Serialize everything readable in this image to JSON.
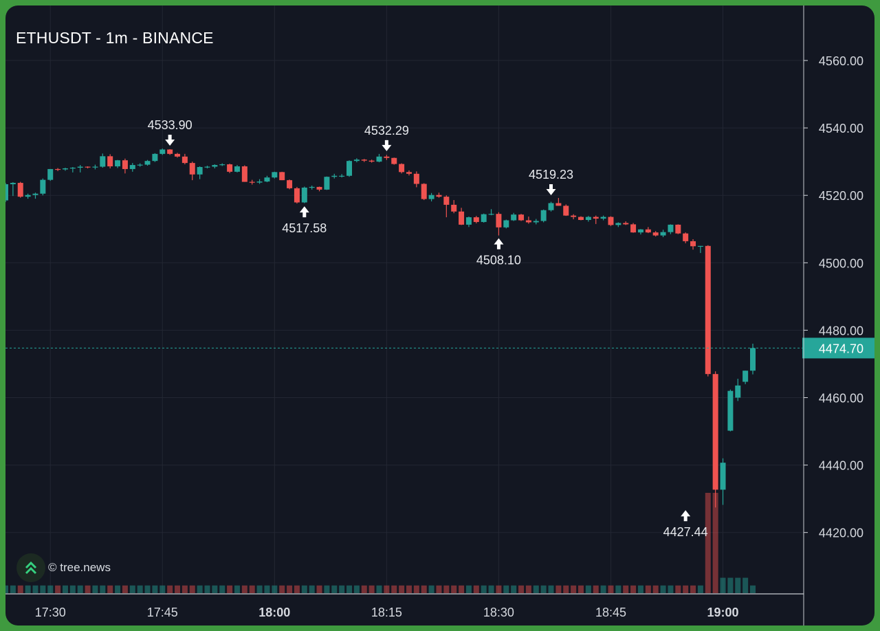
{
  "chart_data": {
    "type": "candlestick",
    "title": "ETHUSDT - 1m - BINANCE",
    "symbol": "ETHUSDT",
    "interval": "1m",
    "exchange": "BINANCE",
    "ylim": [
      4402,
      4574
    ],
    "y_ticks": [
      "4560.00",
      "4540.00",
      "4520.00",
      "4500.00",
      "4480.00",
      "4460.00",
      "4440.00",
      "4420.00"
    ],
    "x_ticks": [
      {
        "label": "17:30",
        "bold": false
      },
      {
        "label": "17:45",
        "bold": false
      },
      {
        "label": "18:00",
        "bold": true
      },
      {
        "label": "18:15",
        "bold": false
      },
      {
        "label": "18:30",
        "bold": false
      },
      {
        "label": "18:45",
        "bold": false
      },
      {
        "label": "19:00",
        "bold": true
      }
    ],
    "start_time": "17:24",
    "current_price": "4474.70",
    "annotations": [
      {
        "time": "17:46",
        "price": 4533.9,
        "label": "4533.90",
        "type": "high"
      },
      {
        "time": "18:04",
        "price": 4517.58,
        "label": "4517.58",
        "type": "low"
      },
      {
        "time": "18:15",
        "price": 4532.29,
        "label": "4532.29",
        "type": "high"
      },
      {
        "time": "18:30",
        "price": 4508.1,
        "label": "4508.10",
        "type": "low"
      },
      {
        "time": "18:37",
        "price": 4519.23,
        "label": "4519.23",
        "type": "high"
      },
      {
        "time": "18:55",
        "price": 4427.44,
        "label": "4427.44",
        "type": "low"
      }
    ],
    "candles": [
      [
        4518.5,
        4523.7,
        4518.0,
        4523.3,
        1
      ],
      [
        4523.3,
        4523.9,
        4519.8,
        4523.7,
        1
      ],
      [
        4523.7,
        4524.0,
        4519.3,
        4519.6,
        1
      ],
      [
        4519.6,
        4520.5,
        4519.0,
        4520.1,
        1
      ],
      [
        4520.1,
        4520.8,
        4519.0,
        4520.5,
        1
      ],
      [
        4520.5,
        4525.0,
        4520.0,
        4524.6,
        1
      ],
      [
        4524.6,
        4527.8,
        4524.3,
        4527.8,
        1
      ],
      [
        4527.8,
        4528.1,
        4527.2,
        4527.7,
        1
      ],
      [
        4527.7,
        4528.2,
        4527.3,
        4528.0,
        1
      ],
      [
        4528.0,
        4528.4,
        4526.8,
        4528.2,
        1
      ],
      [
        4528.2,
        4529.0,
        4526.8,
        4528.5,
        1
      ],
      [
        4528.5,
        4528.6,
        4528.0,
        4528.3,
        1
      ],
      [
        4528.3,
        4529.1,
        4527.7,
        4528.5,
        1
      ],
      [
        4528.5,
        4532.4,
        4528.2,
        4531.6,
        1
      ],
      [
        4531.6,
        4532.2,
        4528.0,
        4528.6,
        1
      ],
      [
        4528.6,
        4530.5,
        4528.1,
        4530.4,
        1
      ],
      [
        4530.4,
        4530.9,
        4526.5,
        4527.8,
        1
      ],
      [
        4527.8,
        4529.6,
        4527.0,
        4529.0,
        1
      ],
      [
        4529.0,
        4529.5,
        4528.5,
        4529.1,
        1
      ],
      [
        4529.1,
        4530.5,
        4528.8,
        4530.2,
        1
      ],
      [
        4530.2,
        4532.5,
        4529.9,
        4532.3,
        1
      ],
      [
        4532.3,
        4533.9,
        4532.0,
        4533.6,
        1
      ],
      [
        4533.6,
        4533.7,
        4532.0,
        4532.3,
        1
      ],
      [
        4532.3,
        4532.6,
        4531.2,
        4531.5,
        1
      ],
      [
        4531.5,
        4532.3,
        4529.2,
        4529.6,
        1
      ],
      [
        4529.6,
        4530.0,
        4524.5,
        4526.2,
        1
      ],
      [
        4526.2,
        4528.6,
        4524.8,
        4528.4,
        1
      ],
      [
        4528.4,
        4528.8,
        4528.0,
        4528.5,
        1
      ],
      [
        4528.5,
        4529.2,
        4528.0,
        4529.0,
        1
      ],
      [
        4529.0,
        4529.5,
        4528.7,
        4529.2,
        1
      ],
      [
        4529.2,
        4529.4,
        4526.6,
        4527.0,
        1
      ],
      [
        4527.0,
        4529.0,
        4526.8,
        4528.6,
        1
      ],
      [
        4528.6,
        4528.9,
        4524.0,
        4524.0,
        1
      ],
      [
        4524.0,
        4524.6,
        4523.2,
        4523.8,
        1
      ],
      [
        4523.8,
        4524.8,
        4523.4,
        4524.1,
        1
      ],
      [
        4524.1,
        4525.8,
        4523.9,
        4525.3,
        1
      ],
      [
        4525.3,
        4527.0,
        4525.0,
        4526.9,
        1
      ],
      [
        4526.9,
        4527.0,
        4524.5,
        4524.5,
        1
      ],
      [
        4524.5,
        4524.7,
        4521.8,
        4522.1,
        1
      ],
      [
        4522.1,
        4522.5,
        4517.58,
        4517.9,
        1
      ],
      [
        4517.9,
        4522.6,
        4517.7,
        4522.3,
        1
      ],
      [
        4522.3,
        4522.9,
        4521.7,
        4522.5,
        1
      ],
      [
        4522.5,
        4522.6,
        4521.2,
        4521.7,
        1
      ],
      [
        4521.7,
        4525.6,
        4521.6,
        4525.5,
        1
      ],
      [
        4525.5,
        4526.4,
        4525.0,
        4525.8,
        1
      ],
      [
        4525.8,
        4526.3,
        4525.3,
        4525.8,
        1
      ],
      [
        4525.8,
        4530.4,
        4525.5,
        4530.2,
        1
      ],
      [
        4530.2,
        4531.0,
        4529.8,
        4530.6,
        1
      ],
      [
        4530.6,
        4530.8,
        4529.9,
        4530.3,
        1
      ],
      [
        4530.3,
        4530.6,
        4529.7,
        4530.0,
        1
      ],
      [
        4530.0,
        4532.29,
        4529.8,
        4531.5,
        1
      ],
      [
        4531.5,
        4532.0,
        4530.5,
        4531.1,
        1
      ],
      [
        4531.1,
        4531.2,
        4529.1,
        4529.3,
        1
      ],
      [
        4529.3,
        4529.5,
        4526.5,
        4526.9,
        1
      ],
      [
        4526.9,
        4527.4,
        4525.9,
        4526.4,
        1
      ],
      [
        4526.4,
        4527.1,
        4522.4,
        4523.4,
        1
      ],
      [
        4523.4,
        4523.6,
        4518.6,
        4518.9,
        1
      ],
      [
        4518.9,
        4520.7,
        4518.2,
        4520.1,
        1
      ],
      [
        4520.1,
        4520.8,
        4519.3,
        4519.6,
        1
      ],
      [
        4519.6,
        4520.0,
        4513.5,
        4517.2,
        1
      ],
      [
        4517.2,
        4518.6,
        4514.7,
        4515.2,
        1
      ],
      [
        4515.2,
        4516.3,
        4511.2,
        4511.3,
        1
      ],
      [
        4511.3,
        4513.7,
        4510.6,
        4513.5,
        1
      ],
      [
        4513.5,
        4513.9,
        4511.7,
        4512.1,
        1
      ],
      [
        4512.1,
        4514.6,
        4511.9,
        4514.4,
        1
      ],
      [
        4514.4,
        4515.9,
        4514.1,
        4514.5,
        1
      ],
      [
        4514.5,
        4515.0,
        4508.1,
        4510.5,
        1
      ],
      [
        4510.5,
        4512.8,
        4510.2,
        4512.6,
        1
      ],
      [
        4512.6,
        4514.8,
        4512.4,
        4514.3,
        1
      ],
      [
        4514.3,
        4514.5,
        4512.4,
        4512.6,
        1
      ],
      [
        4512.6,
        4513.7,
        4511.6,
        4512.0,
        1
      ],
      [
        4512.0,
        4513.0,
        4511.4,
        4512.4,
        1
      ],
      [
        4512.4,
        4515.8,
        4512.0,
        4515.6,
        1
      ],
      [
        4515.6,
        4518.1,
        4515.2,
        4517.7,
        1
      ],
      [
        4517.7,
        4519.23,
        4516.9,
        4516.9,
        1
      ],
      [
        4516.9,
        4517.3,
        4513.9,
        4514.0,
        1
      ],
      [
        4514.0,
        4514.4,
        4512.9,
        4513.6,
        1
      ],
      [
        4513.6,
        4513.8,
        4512.6,
        4512.7,
        1
      ],
      [
        4512.7,
        4513.9,
        4512.2,
        4513.6,
        1
      ],
      [
        4513.6,
        4514.0,
        4511.5,
        4513.1,
        1
      ],
      [
        4513.1,
        4514.0,
        4512.6,
        4513.6,
        1
      ],
      [
        4513.6,
        4513.8,
        4510.9,
        4511.2,
        1
      ],
      [
        4511.2,
        4512.0,
        4510.6,
        4511.8,
        1
      ],
      [
        4511.8,
        4512.3,
        4511.2,
        4511.4,
        1
      ],
      [
        4511.4,
        4511.8,
        4508.9,
        4509.0,
        1
      ],
      [
        4509.0,
        4510.0,
        4508.4,
        4509.9,
        1
      ],
      [
        4509.9,
        4510.6,
        4508.8,
        4509.0,
        1
      ],
      [
        4509.0,
        4509.4,
        4507.8,
        4508.1,
        1
      ],
      [
        4508.1,
        4509.8,
        4507.6,
        4509.1,
        1
      ],
      [
        4509.1,
        4511.4,
        4508.5,
        4511.3,
        1
      ],
      [
        4511.3,
        4511.4,
        4508.5,
        4508.7,
        1
      ],
      [
        4508.7,
        4509.0,
        4505.8,
        4506.4,
        1
      ],
      [
        4506.4,
        4507.0,
        4503.9,
        4504.9,
        1
      ],
      [
        4504.9,
        4505.0,
        4502.9,
        4505.0,
        1
      ],
      [
        4505.0,
        4505.2,
        4466.3,
        4467.0,
        13
      ],
      [
        4467.0,
        4467.8,
        4427.44,
        4432.7,
        13
      ],
      [
        4432.7,
        4442.0,
        4428.2,
        4440.7,
        2
      ],
      [
        4450.2,
        4462.4,
        4450.0,
        4462.0,
        2
      ],
      [
        4460.0,
        4465.6,
        4459.0,
        4463.6,
        2
      ],
      [
        4464.7,
        4468.0,
        4464.0,
        4468.0,
        2
      ],
      [
        4468.0,
        4476.0,
        4466.9,
        4474.7,
        1
      ]
    ]
  }
}
